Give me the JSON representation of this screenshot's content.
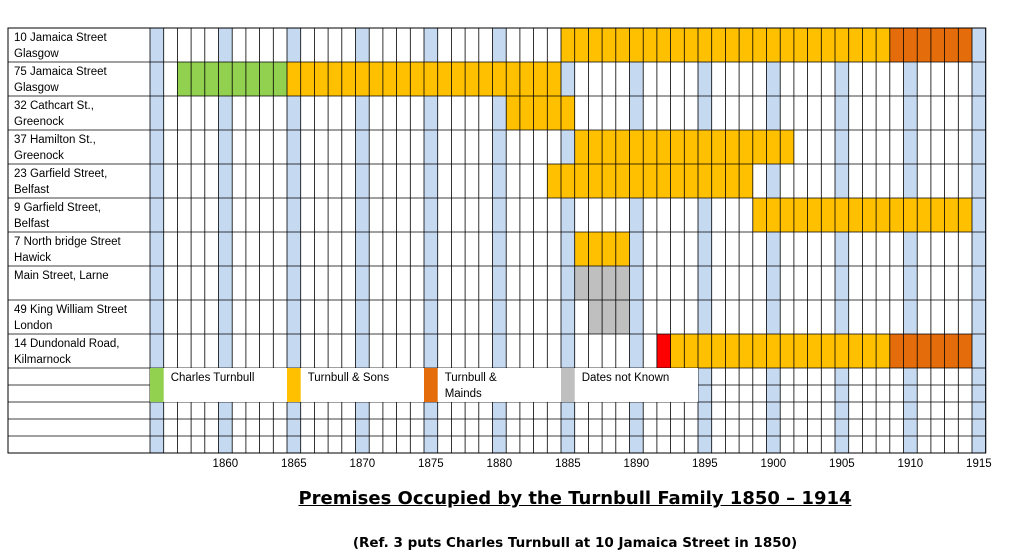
{
  "chart_data": {
    "type": "table",
    "title": "Premises Occupied by the Turnbull Family 1850 – 1914",
    "note": "(Ref. 3 puts Charles Turnbull at 10 Jamaica Street in 1850)",
    "year_start": 1855,
    "year_end": 1915,
    "highlight_years": [
      1855,
      1860,
      1865,
      1870,
      1875,
      1880,
      1885,
      1890,
      1895,
      1900,
      1905,
      1910,
      1915
    ],
    "tick_labels": [
      1860,
      1865,
      1870,
      1875,
      1880,
      1885,
      1890,
      1895,
      1900,
      1905,
      1910,
      1915
    ],
    "colors": {
      "charles": "#92D050",
      "sons": "#FFC000",
      "mainds": "#E46C0A",
      "unknown": "#BFBFBF",
      "red": "#FF0000",
      "highlight": "#C5D9F1",
      "grid": "#000000"
    },
    "rows": [
      {
        "lines": [
          "10 Jamaica Street",
          "Glasgow"
        ],
        "segments": [
          {
            "start": 1885,
            "end": 1908,
            "color": "sons"
          },
          {
            "start": 1909,
            "end": 1914,
            "color": "mainds"
          }
        ]
      },
      {
        "lines": [
          "75 Jamaica Street",
          "Glasgow"
        ],
        "segments": [
          {
            "start": 1857,
            "end": 1864,
            "color": "charles"
          },
          {
            "start": 1865,
            "end": 1884,
            "color": "sons"
          }
        ]
      },
      {
        "lines": [
          "32 Cathcart St.,",
          "Greenock"
        ],
        "segments": [
          {
            "start": 1881,
            "end": 1885,
            "color": "sons"
          }
        ]
      },
      {
        "lines": [
          "37 Hamilton St.,",
          "Greenock"
        ],
        "segments": [
          {
            "start": 1886,
            "end": 1901,
            "color": "sons"
          }
        ]
      },
      {
        "lines": [
          "23 Garfield Street,",
          "Belfast"
        ],
        "segments": [
          {
            "start": 1884,
            "end": 1898,
            "color": "sons"
          }
        ]
      },
      {
        "lines": [
          "9 Garfield Street,",
          "Belfast"
        ],
        "segments": [
          {
            "start": 1899,
            "end": 1914,
            "color": "sons"
          }
        ]
      },
      {
        "lines": [
          "7 North bridge Street",
          "Hawick"
        ],
        "segments": [
          {
            "start": 1886,
            "end": 1889,
            "color": "sons"
          }
        ]
      },
      {
        "lines": [
          "Main Street, Larne",
          ""
        ],
        "segments": [
          {
            "start": 1886,
            "end": 1889,
            "color": "unknown"
          }
        ]
      },
      {
        "lines": [
          "49 King William Street",
          "London"
        ],
        "segments": [
          {
            "start": 1887,
            "end": 1889,
            "color": "unknown"
          }
        ]
      },
      {
        "lines": [
          "14 Dundonald Road,",
          "Kilmarnock"
        ],
        "segments": [
          {
            "start": 1892,
            "end": 1892,
            "color": "red"
          },
          {
            "start": 1893,
            "end": 1908,
            "color": "sons"
          },
          {
            "start": 1909,
            "end": 1914,
            "color": "mainds"
          }
        ]
      }
    ],
    "legend": [
      {
        "year": 1855,
        "span": 10,
        "color": "charles",
        "lines": [
          "Charles Turnbull"
        ]
      },
      {
        "year": 1865,
        "span": 10,
        "color": "sons",
        "lines": [
          "Turnbull & Sons"
        ]
      },
      {
        "year": 1875,
        "span": 10,
        "color": "mainds",
        "lines": [
          "Turnbull &",
          "Mainds"
        ]
      },
      {
        "year": 1885,
        "span": 10,
        "color": "unknown",
        "lines": [
          "Dates not Known"
        ]
      }
    ]
  }
}
